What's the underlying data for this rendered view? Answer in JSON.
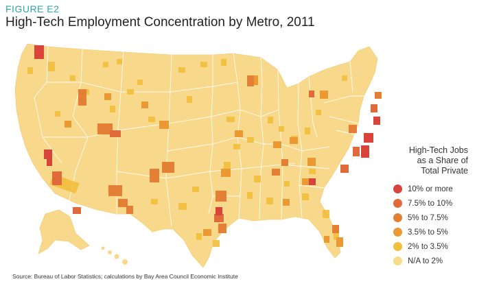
{
  "header": {
    "figure_label": "FIGURE E2",
    "title": "High-Tech Employment Concentration by Metro, 2011"
  },
  "legend": {
    "title_lines": [
      "High-Tech Jobs",
      "as a Share of",
      "Total Private"
    ],
    "items": [
      {
        "label": "10% or more",
        "color": "#d9443a"
      },
      {
        "label": "7.5% to 10%",
        "color": "#e06a3a"
      },
      {
        "label": "5% to 7.5%",
        "color": "#e47f36"
      },
      {
        "label": "3.5% to 5%",
        "color": "#eb9a33"
      },
      {
        "label": "2% to 3.5%",
        "color": "#f2be3c"
      },
      {
        "label": "N/A to 2%",
        "color": "#f8dc8a"
      }
    ]
  },
  "map": {
    "base_color": "#f8d98c",
    "border_color": "#ffffff"
  },
  "source": "Source: Bureau of Labor Statistics; calculations by Bay Area Council Economic Institute"
}
